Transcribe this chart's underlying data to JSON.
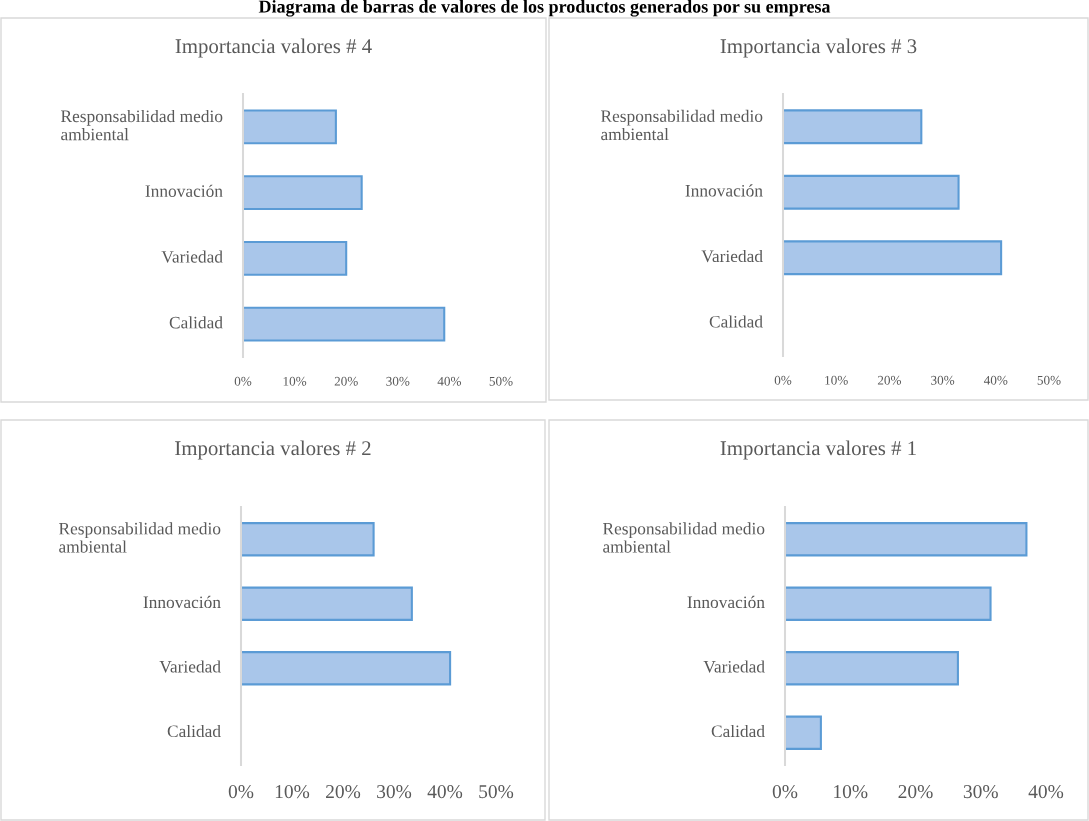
{
  "chart_data": [
    {
      "type": "other",
      "title": "Diagrama de barras de valores de los productos generados por su empresa"
    },
    {
      "type": "bar",
      "orientation": "horizontal",
      "title": "Importancia valores # 4",
      "categories": [
        "Responsabilidad medio ambiental",
        "Innovación",
        "Variedad",
        "Calidad"
      ],
      "values": [
        18,
        23,
        20,
        39
      ],
      "color": "#a9c6ea",
      "xlim": [
        0,
        50
      ],
      "xticks": [
        {
          "value": 0,
          "label": "0%"
        },
        {
          "value": 10,
          "label": "10%"
        },
        {
          "value": 20,
          "label": "20%"
        },
        {
          "value": 30,
          "label": "30%"
        },
        {
          "value": 40,
          "label": "40%"
        },
        {
          "value": 50,
          "label": "50%"
        }
      ],
      "grid": false,
      "legend": false
    },
    {
      "type": "bar",
      "orientation": "horizontal",
      "title": "Importancia valores # 3",
      "categories": [
        "Responsabilidad medio ambiental",
        "Innovación",
        "Variedad",
        "Calidad"
      ],
      "values": [
        26,
        33,
        41,
        0
      ],
      "color": "#a9c6ea",
      "xlim": [
        0,
        50
      ],
      "xticks": [
        {
          "value": 0,
          "label": "0%"
        },
        {
          "value": 10,
          "label": "10%"
        },
        {
          "value": 20,
          "label": "20%"
        },
        {
          "value": 30,
          "label": "30%"
        },
        {
          "value": 40,
          "label": "40%"
        },
        {
          "value": 50,
          "label": "50%"
        }
      ],
      "grid": false,
      "legend": false
    },
    {
      "type": "bar",
      "orientation": "horizontal",
      "title": "Importancia valores # 2",
      "categories": [
        "Responsabilidad medio ambiental",
        "Innovación",
        "Variedad",
        "Calidad"
      ],
      "values": [
        26,
        33.5,
        41,
        0
      ],
      "color": "#a9c6ea",
      "xlim": [
        0,
        50
      ],
      "xticks": [
        {
          "value": 0,
          "label": "0%"
        },
        {
          "value": 10,
          "label": "10%"
        },
        {
          "value": 20,
          "label": "20%"
        },
        {
          "value": 30,
          "label": "30%"
        },
        {
          "value": 40,
          "label": "40%"
        },
        {
          "value": 50,
          "label": "50%"
        }
      ],
      "grid": false,
      "legend": false
    },
    {
      "type": "bar",
      "orientation": "horizontal",
      "title": "Importancia valores # 1",
      "categories": [
        "Responsabilidad medio ambiental",
        "Innovación",
        "Variedad",
        "Calidad"
      ],
      "values": [
        37,
        31.5,
        26.5,
        5.5
      ],
      "color": "#a9c6ea",
      "xlim": [
        0,
        40
      ],
      "xticks": [
        {
          "value": 0,
          "label": "0%"
        },
        {
          "value": 10,
          "label": "10%"
        },
        {
          "value": 20,
          "label": "20%"
        },
        {
          "value": 30,
          "label": "30%"
        },
        {
          "value": 40,
          "label": "40%"
        }
      ],
      "grid": false,
      "legend": false
    }
  ]
}
